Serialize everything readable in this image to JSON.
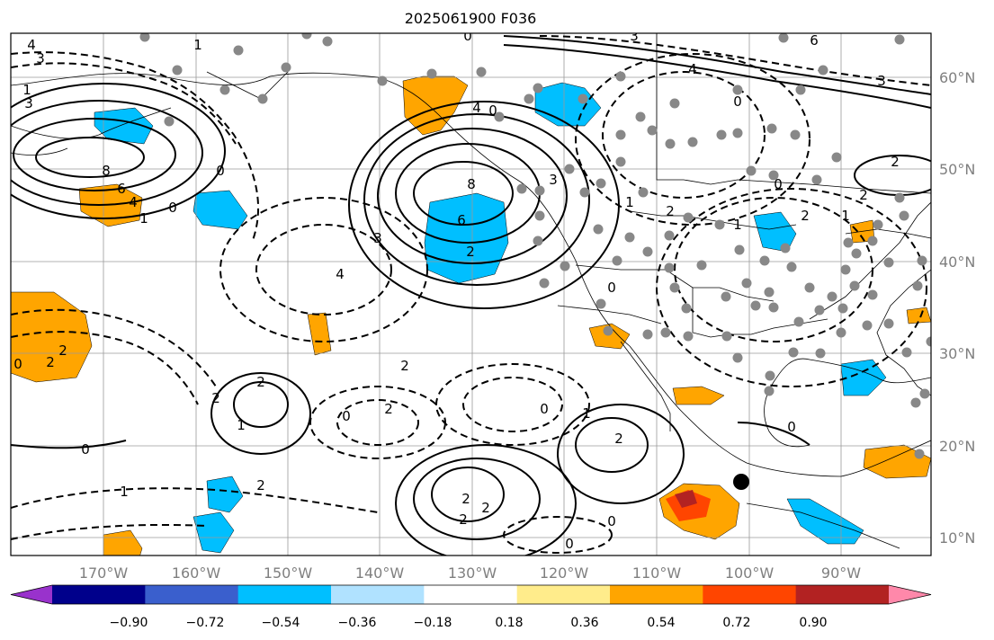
{
  "title": "2025061900 F036",
  "map": {
    "lon_ticks": [
      "170°W",
      "160°W",
      "150°W",
      "140°W",
      "130°W",
      "120°W",
      "110°W",
      "100°W",
      "90°W"
    ],
    "lat_ticks": [
      "60°N",
      "50°N",
      "40°N",
      "30°N",
      "20°N",
      "10°N"
    ],
    "contour_labels": [
      "4",
      "3",
      "1",
      "3",
      "8",
      "6",
      "4",
      "1",
      "0",
      "1",
      "0",
      "3",
      "0",
      "8",
      "6",
      "2",
      "3",
      "4",
      "2",
      "1",
      "2",
      "4",
      "3",
      "1",
      "0",
      "6",
      "4",
      "3",
      "0",
      "0",
      "2",
      "0",
      "2",
      "1",
      "0",
      "2",
      "1",
      "0",
      "2",
      "2",
      "0",
      "1",
      "2",
      "2",
      "2",
      "2",
      "0",
      "0",
      "1",
      "2",
      "2",
      "0",
      "0",
      "2",
      "2"
    ],
    "marker": "station-dot"
  },
  "colorbar": {
    "labels": [
      "−0.90",
      "−0.72",
      "−0.54",
      "−0.36",
      "−0.18",
      "0.18",
      "0.36",
      "0.54",
      "0.72",
      "0.90"
    ],
    "colors": [
      "#9932cc",
      "#00008b",
      "#3a5fcd",
      "#00bfff",
      "#b0e2ff",
      "#ffffff",
      "#ffec8b",
      "#ffa500",
      "#ff4500",
      "#b22222",
      "#ff88aa"
    ]
  }
}
